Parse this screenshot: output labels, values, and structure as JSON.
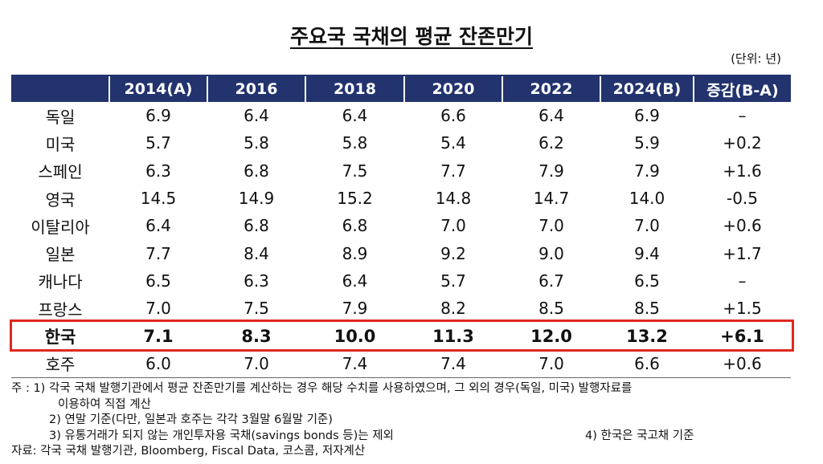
{
  "title": "주요국 국채의 평균 잔존만기",
  "unit": "(단위: 년)",
  "columns": [
    "",
    "2014(A)",
    "2016",
    "2018",
    "2020",
    "2022",
    "2024(B)",
    "증감(B-A)"
  ],
  "rows": [
    [
      "독일",
      "6.9",
      "6.4",
      "6.4",
      "6.6",
      "6.4",
      "6.9",
      "–"
    ],
    [
      "미국",
      "5.7",
      "5.8",
      "5.8",
      "5.4",
      "6.2",
      "5.9",
      "+0.2"
    ],
    [
      "스페인",
      "6.3",
      "6.8",
      "7.5",
      "7.7",
      "7.9",
      "7.9",
      "+1.6"
    ],
    [
      "영국",
      "14.5",
      "14.9",
      "15.2",
      "14.8",
      "14.7",
      "14.0",
      "-0.5"
    ],
    [
      "이탈리아",
      "6.4",
      "6.8",
      "6.8",
      "7.0",
      "7.0",
      "7.0",
      "+0.6"
    ],
    [
      "일본",
      "7.7",
      "8.4",
      "8.9",
      "9.2",
      "9.0",
      "9.4",
      "+1.7"
    ],
    [
      "캐나다",
      "6.5",
      "6.3",
      "6.4",
      "5.7",
      "6.7",
      "6.5",
      "–"
    ],
    [
      "프랑스",
      "7.0",
      "7.5",
      "7.9",
      "8.2",
      "8.5",
      "8.5",
      "+1.5"
    ],
    [
      "한국",
      "7.1",
      "8.3",
      "10.0",
      "11.3",
      "12.0",
      "13.2",
      "+6.1"
    ],
    [
      "호주",
      "6.0",
      "7.0",
      "7.4",
      "7.4",
      "7.0",
      "6.6",
      "+0.6"
    ]
  ],
  "highlight_color": "#e0281f",
  "header_color": "#22336e",
  "notes": {
    "n1a": "주   : 1) 각국 국채 발행기관에서 평균 잔존만기를 계산하는 경우 해당 수치를 사용하였으며, 그 외의 경우(독일, 미국) 발행자료를",
    "n1b": "이용하여 직접 계산",
    "n2": "2) 연말 기준(다만, 일본과 호주는 각각 3월말 6월말 기준)",
    "n3": "3) 유통거래가 되지 않는 개인투자용 국채(savings bonds 등)는 제외",
    "n4": "4) 한국은 국고채 기준",
    "source": "자료: 각국 국채 발행기관, Bloomberg, Fiscal Data, 코스콤, 저자계산"
  }
}
